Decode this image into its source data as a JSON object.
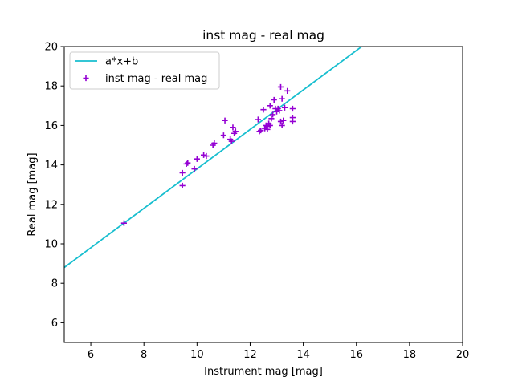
{
  "chart_data": {
    "type": "scatter",
    "title": "inst mag - real mag",
    "xlabel": "Instrument mag [mag]",
    "ylabel": "Real mag [mag]",
    "xlim": [
      5,
      20
    ],
    "ylim": [
      5,
      20
    ],
    "xticks": [
      6,
      8,
      10,
      12,
      14,
      16,
      18,
      20
    ],
    "yticks": [
      6,
      8,
      10,
      12,
      14,
      16,
      18,
      20
    ],
    "grid": false,
    "legend_position": "upper-left",
    "series": [
      {
        "name": "a*x+b",
        "kind": "line",
        "color": "#17becf",
        "line": {
          "slope": 1.0,
          "intercept": 3.8
        }
      },
      {
        "name": "inst mag - real mag",
        "kind": "scatter",
        "marker": "+",
        "color": "#9400d3",
        "points": [
          [
            7.25,
            11.05
          ],
          [
            9.45,
            12.95
          ],
          [
            9.45,
            13.6
          ],
          [
            9.6,
            14.05
          ],
          [
            9.65,
            14.1
          ],
          [
            9.9,
            13.8
          ],
          [
            10.0,
            14.3
          ],
          [
            10.25,
            14.5
          ],
          [
            10.35,
            14.45
          ],
          [
            10.6,
            15.0
          ],
          [
            10.65,
            15.1
          ],
          [
            11.0,
            15.5
          ],
          [
            11.05,
            16.25
          ],
          [
            11.25,
            15.3
          ],
          [
            11.35,
            15.9
          ],
          [
            11.4,
            15.6
          ],
          [
            11.45,
            15.7
          ],
          [
            11.3,
            15.2
          ],
          [
            12.3,
            16.3
          ],
          [
            12.35,
            15.7
          ],
          [
            12.4,
            15.75
          ],
          [
            12.5,
            16.8
          ],
          [
            12.55,
            15.85
          ],
          [
            12.6,
            16.0
          ],
          [
            12.65,
            15.8
          ],
          [
            12.65,
            15.95
          ],
          [
            12.7,
            16.1
          ],
          [
            12.75,
            16.0
          ],
          [
            12.75,
            17.0
          ],
          [
            12.8,
            16.35
          ],
          [
            12.85,
            16.55
          ],
          [
            12.9,
            17.3
          ],
          [
            12.95,
            16.85
          ],
          [
            13.0,
            16.7
          ],
          [
            13.05,
            16.85
          ],
          [
            13.1,
            16.75
          ],
          [
            13.15,
            16.2
          ],
          [
            13.15,
            17.95
          ],
          [
            13.2,
            17.35
          ],
          [
            13.2,
            16.0
          ],
          [
            13.25,
            16.25
          ],
          [
            13.3,
            16.9
          ],
          [
            13.4,
            17.75
          ],
          [
            13.6,
            16.85
          ],
          [
            13.6,
            16.4
          ],
          [
            13.6,
            16.2
          ]
        ]
      }
    ]
  }
}
